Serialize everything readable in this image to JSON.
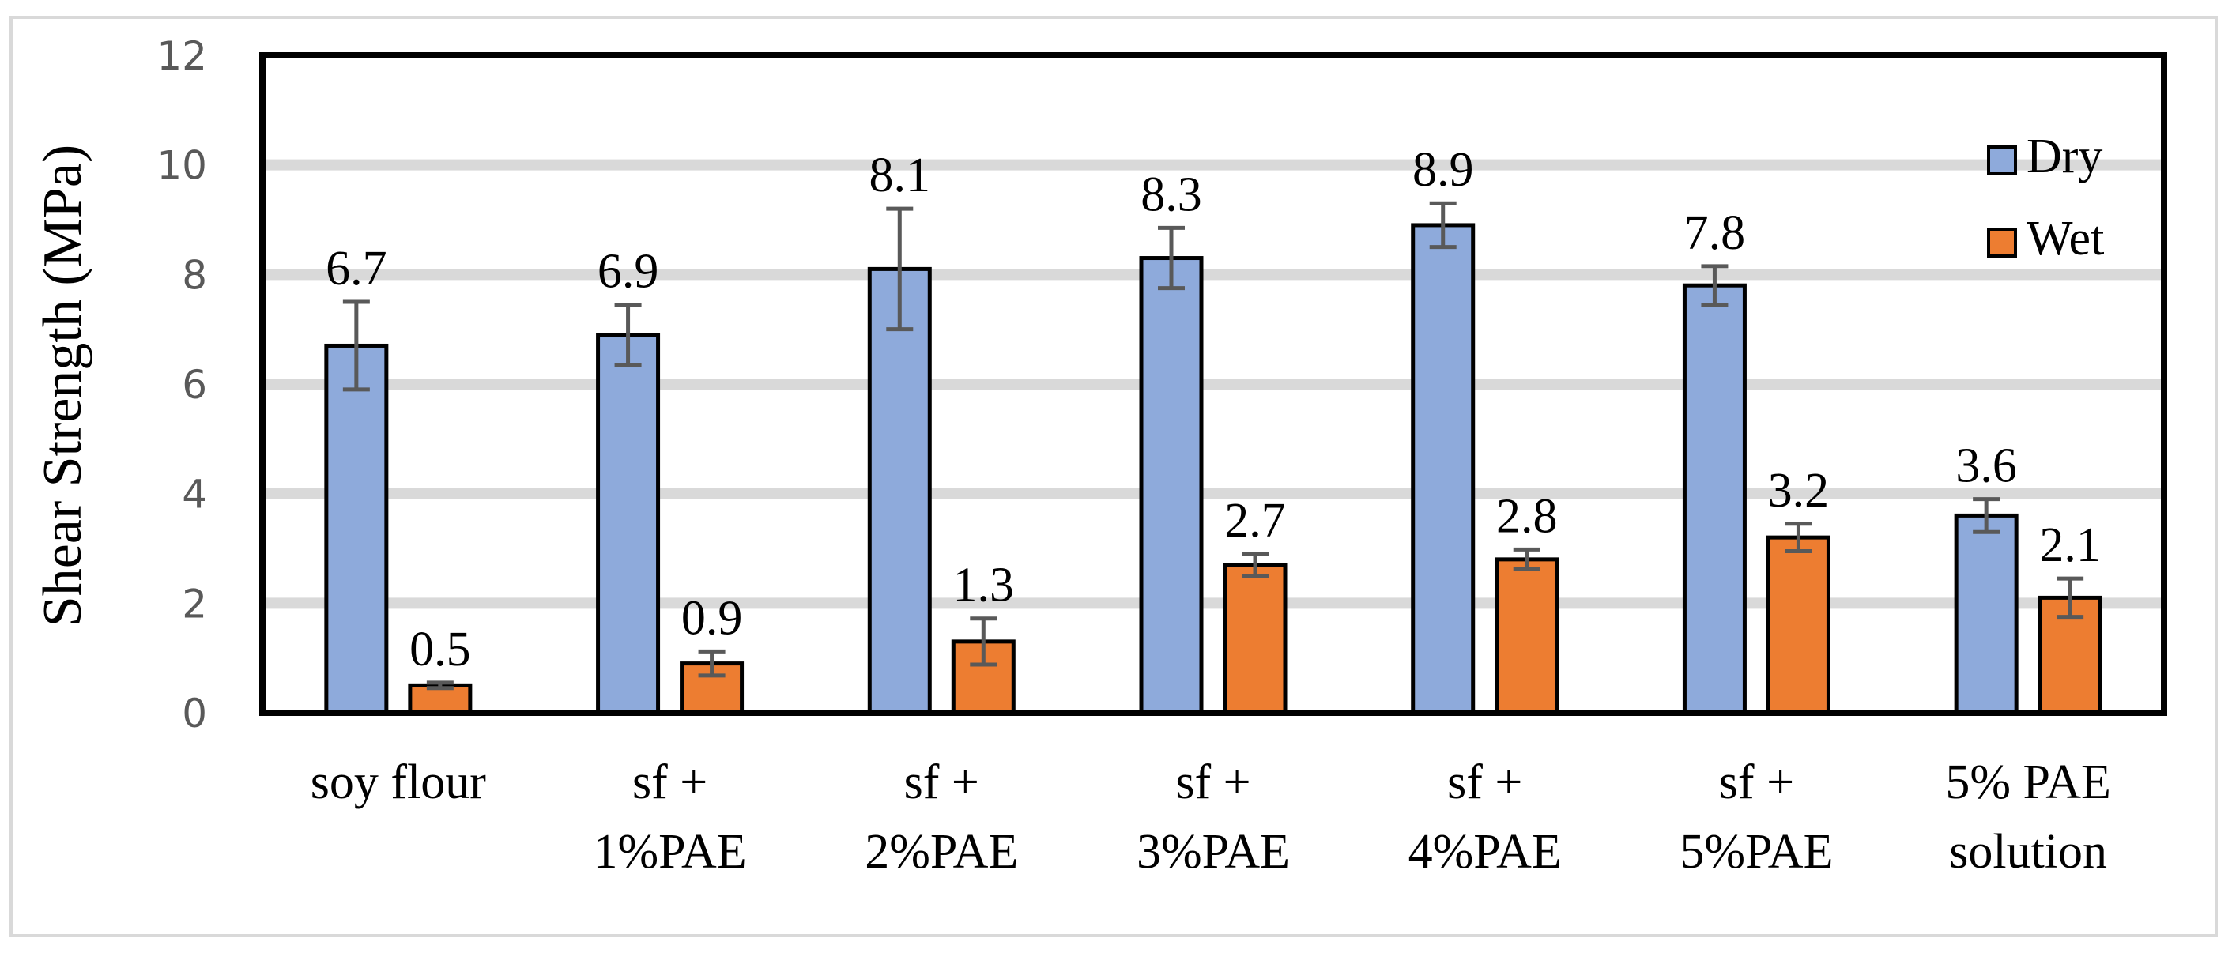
{
  "chart_data": {
    "type": "bar",
    "title": "",
    "xlabel": "",
    "ylabel": "Shear Strength (MPa)",
    "ylim": [
      0,
      12
    ],
    "yticks": [
      "0",
      "2",
      "4",
      "6",
      "8",
      "10",
      "12"
    ],
    "grid": true,
    "legend_position": "top-right",
    "categories": [
      [
        "soy flour"
      ],
      [
        "sf +",
        "1%PAE"
      ],
      [
        "sf +",
        "2%PAE"
      ],
      [
        "sf +",
        "3%PAE"
      ],
      [
        "sf +",
        "4%PAE"
      ],
      [
        "sf +",
        "5%PAE"
      ],
      [
        "5% PAE",
        "solution"
      ]
    ],
    "series": [
      {
        "name": "Dry",
        "color": "#8eaadb",
        "values": [
          6.7,
          6.9,
          8.1,
          8.3,
          8.9,
          7.8,
          3.6
        ],
        "labels": [
          "6.7",
          "6.9",
          "8.1",
          "8.3",
          "8.9",
          "7.8",
          "3.6"
        ],
        "errors": [
          0.8,
          0.55,
          1.1,
          0.55,
          0.4,
          0.35,
          0.3
        ]
      },
      {
        "name": "Wet",
        "color": "#ed7d31",
        "values": [
          0.5,
          0.9,
          1.3,
          2.7,
          2.8,
          3.2,
          2.1
        ],
        "labels": [
          "0.5",
          "0.9",
          "1.3",
          "2.7",
          "2.8",
          "3.2",
          "2.1"
        ],
        "errors": [
          0.05,
          0.22,
          0.42,
          0.2,
          0.18,
          0.25,
          0.35
        ]
      }
    ]
  }
}
